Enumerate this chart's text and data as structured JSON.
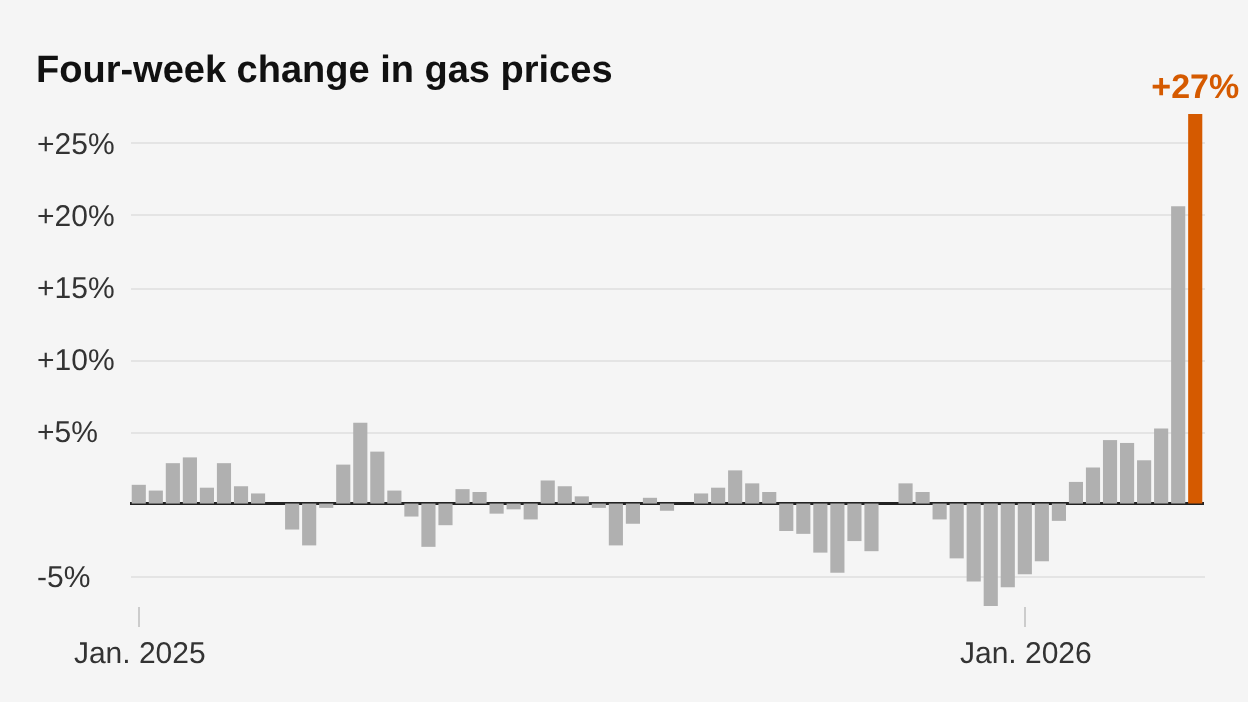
{
  "chart_data": {
    "type": "bar",
    "title": "Four-week change in gas prices",
    "categories": [
      "Jan. 2025",
      null,
      null,
      null,
      null,
      null,
      null,
      null,
      null,
      null,
      null,
      null,
      null,
      null,
      null,
      null,
      null,
      null,
      null,
      null,
      null,
      null,
      null,
      null,
      null,
      null,
      null,
      null,
      null,
      null,
      null,
      null,
      null,
      null,
      null,
      null,
      null,
      null,
      null,
      null,
      null,
      null,
      null,
      null,
      null,
      null,
      null,
      null,
      null,
      null,
      null,
      null,
      "Jan. 2026",
      null,
      null,
      null,
      null,
      null,
      null,
      null,
      null,
      null,
      null
    ],
    "values": [
      1.3,
      0.9,
      2.8,
      3.2,
      1.1,
      2.8,
      1.2,
      0.7,
      0,
      -1.8,
      -2.9,
      -0.3,
      2.7,
      5.6,
      3.6,
      0.9,
      -0.9,
      -3.0,
      -1.5,
      1.0,
      0.8,
      -0.7,
      -0.4,
      -1.1,
      1.6,
      1.2,
      0.5,
      -0.3,
      -2.9,
      -1.4,
      0.4,
      -0.5,
      0,
      0.7,
      1.1,
      2.3,
      1.4,
      0.8,
      -1.9,
      -2.1,
      -3.4,
      -4.8,
      -2.6,
      -3.3,
      0,
      1.4,
      0.8,
      -1.1,
      -3.8,
      -5.4,
      -7.1,
      -5.8,
      -4.9,
      -4.0,
      -1.2,
      1.5,
      2.5,
      4.4,
      4.2,
      3.0,
      5.2,
      20.6,
      27
    ],
    "colors": [
      "#b0b0b0",
      "#b0b0b0",
      "#b0b0b0",
      "#b0b0b0",
      "#b0b0b0",
      "#b0b0b0",
      "#b0b0b0",
      "#b0b0b0",
      "#b0b0b0",
      "#b0b0b0",
      "#b0b0b0",
      "#b0b0b0",
      "#b0b0b0",
      "#b0b0b0",
      "#b0b0b0",
      "#b0b0b0",
      "#b0b0b0",
      "#b0b0b0",
      "#b0b0b0",
      "#b0b0b0",
      "#b0b0b0",
      "#b0b0b0",
      "#b0b0b0",
      "#b0b0b0",
      "#b0b0b0",
      "#b0b0b0",
      "#b0b0b0",
      "#b0b0b0",
      "#b0b0b0",
      "#b0b0b0",
      "#b0b0b0",
      "#b0b0b0",
      "#b0b0b0",
      "#b0b0b0",
      "#b0b0b0",
      "#b0b0b0",
      "#b0b0b0",
      "#b0b0b0",
      "#b0b0b0",
      "#b0b0b0",
      "#b0b0b0",
      "#b0b0b0",
      "#b0b0b0",
      "#b0b0b0",
      "#b0b0b0",
      "#b0b0b0",
      "#b0b0b0",
      "#b0b0b0",
      "#b0b0b0",
      "#b0b0b0",
      "#b0b0b0",
      "#b0b0b0",
      "#b0b0b0",
      "#b0b0b0",
      "#b0b0b0",
      "#b0b0b0",
      "#b0b0b0",
      "#b0b0b0",
      "#b0b0b0",
      "#b0b0b0",
      "#b0b0b0",
      "#b0b0b0",
      "#d55a00"
    ],
    "value_labels": [
      null,
      null,
      null,
      null,
      null,
      null,
      null,
      null,
      null,
      null,
      null,
      null,
      null,
      null,
      null,
      null,
      null,
      null,
      null,
      null,
      null,
      null,
      null,
      null,
      null,
      null,
      null,
      null,
      null,
      null,
      null,
      null,
      null,
      null,
      null,
      null,
      null,
      null,
      null,
      null,
      null,
      null,
      null,
      null,
      null,
      null,
      null,
      null,
      null,
      null,
      null,
      null,
      null,
      null,
      null,
      null,
      null,
      null,
      null,
      null,
      null,
      null,
      "+27%"
    ],
    "ylim": [
      -7.1,
      27
    ],
    "yticks": [
      {
        "value": -5,
        "label": "-5%"
      },
      {
        "value": 5,
        "label": "+5%"
      },
      {
        "value": 10,
        "label": "+10%"
      },
      {
        "value": 15,
        "label": "+15%"
      },
      {
        "value": 20,
        "label": "+20%"
      },
      {
        "value": 25,
        "label": "+25%"
      }
    ],
    "grid": "y",
    "ref_lines": [
      {
        "axis": "y",
        "value": 0,
        "color": "#222222"
      }
    ]
  }
}
